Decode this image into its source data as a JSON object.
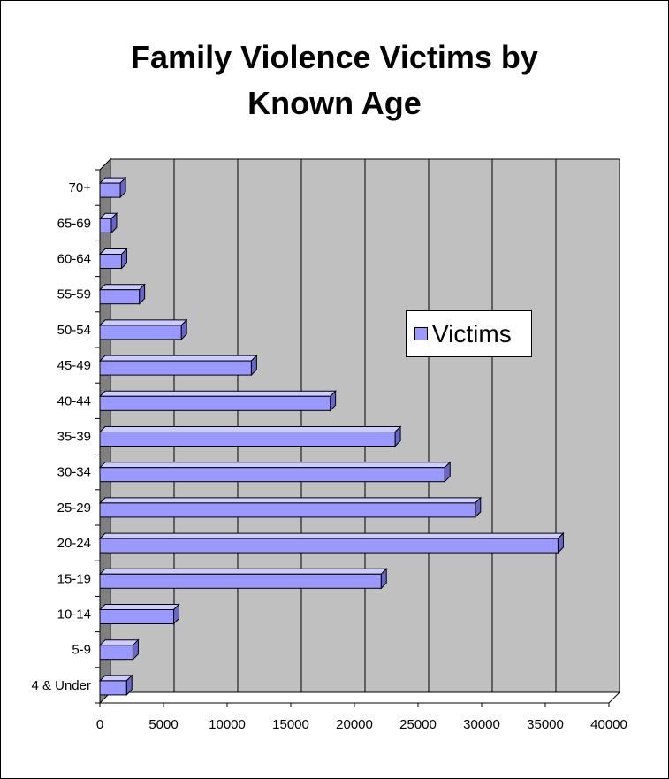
{
  "title_lines": [
    "Family Violence Victims by",
    "Known Age"
  ],
  "colors": {
    "bar_face": "#9999ff",
    "bar_top": "#ccccff",
    "bar_side": "#6666cc",
    "plot_bg": "#c0c0c0",
    "wall": "#808080"
  },
  "legend": {
    "label": "Victims"
  },
  "chart_data": {
    "type": "bar",
    "orientation": "horizontal",
    "style": "3d",
    "title": "Family Violence Victims by Known Age",
    "categories": [
      "4 & Under",
      "5-9",
      "10-14",
      "15-19",
      "20-24",
      "25-29",
      "30-34",
      "35-39",
      "40-44",
      "45-49",
      "50-54",
      "55-59",
      "60-64",
      "65-69",
      "70+"
    ],
    "series": [
      {
        "name": "Victims",
        "values": [
          2100,
          2600,
          5800,
          22100,
          36000,
          29500,
          27100,
          23200,
          18100,
          11900,
          6400,
          3100,
          1700,
          900,
          1600
        ]
      }
    ],
    "xlim": [
      0,
      40000
    ],
    "xticks": [
      0,
      5000,
      10000,
      15000,
      20000,
      25000,
      30000,
      35000,
      40000
    ],
    "grid": true,
    "legend_position": "right"
  }
}
